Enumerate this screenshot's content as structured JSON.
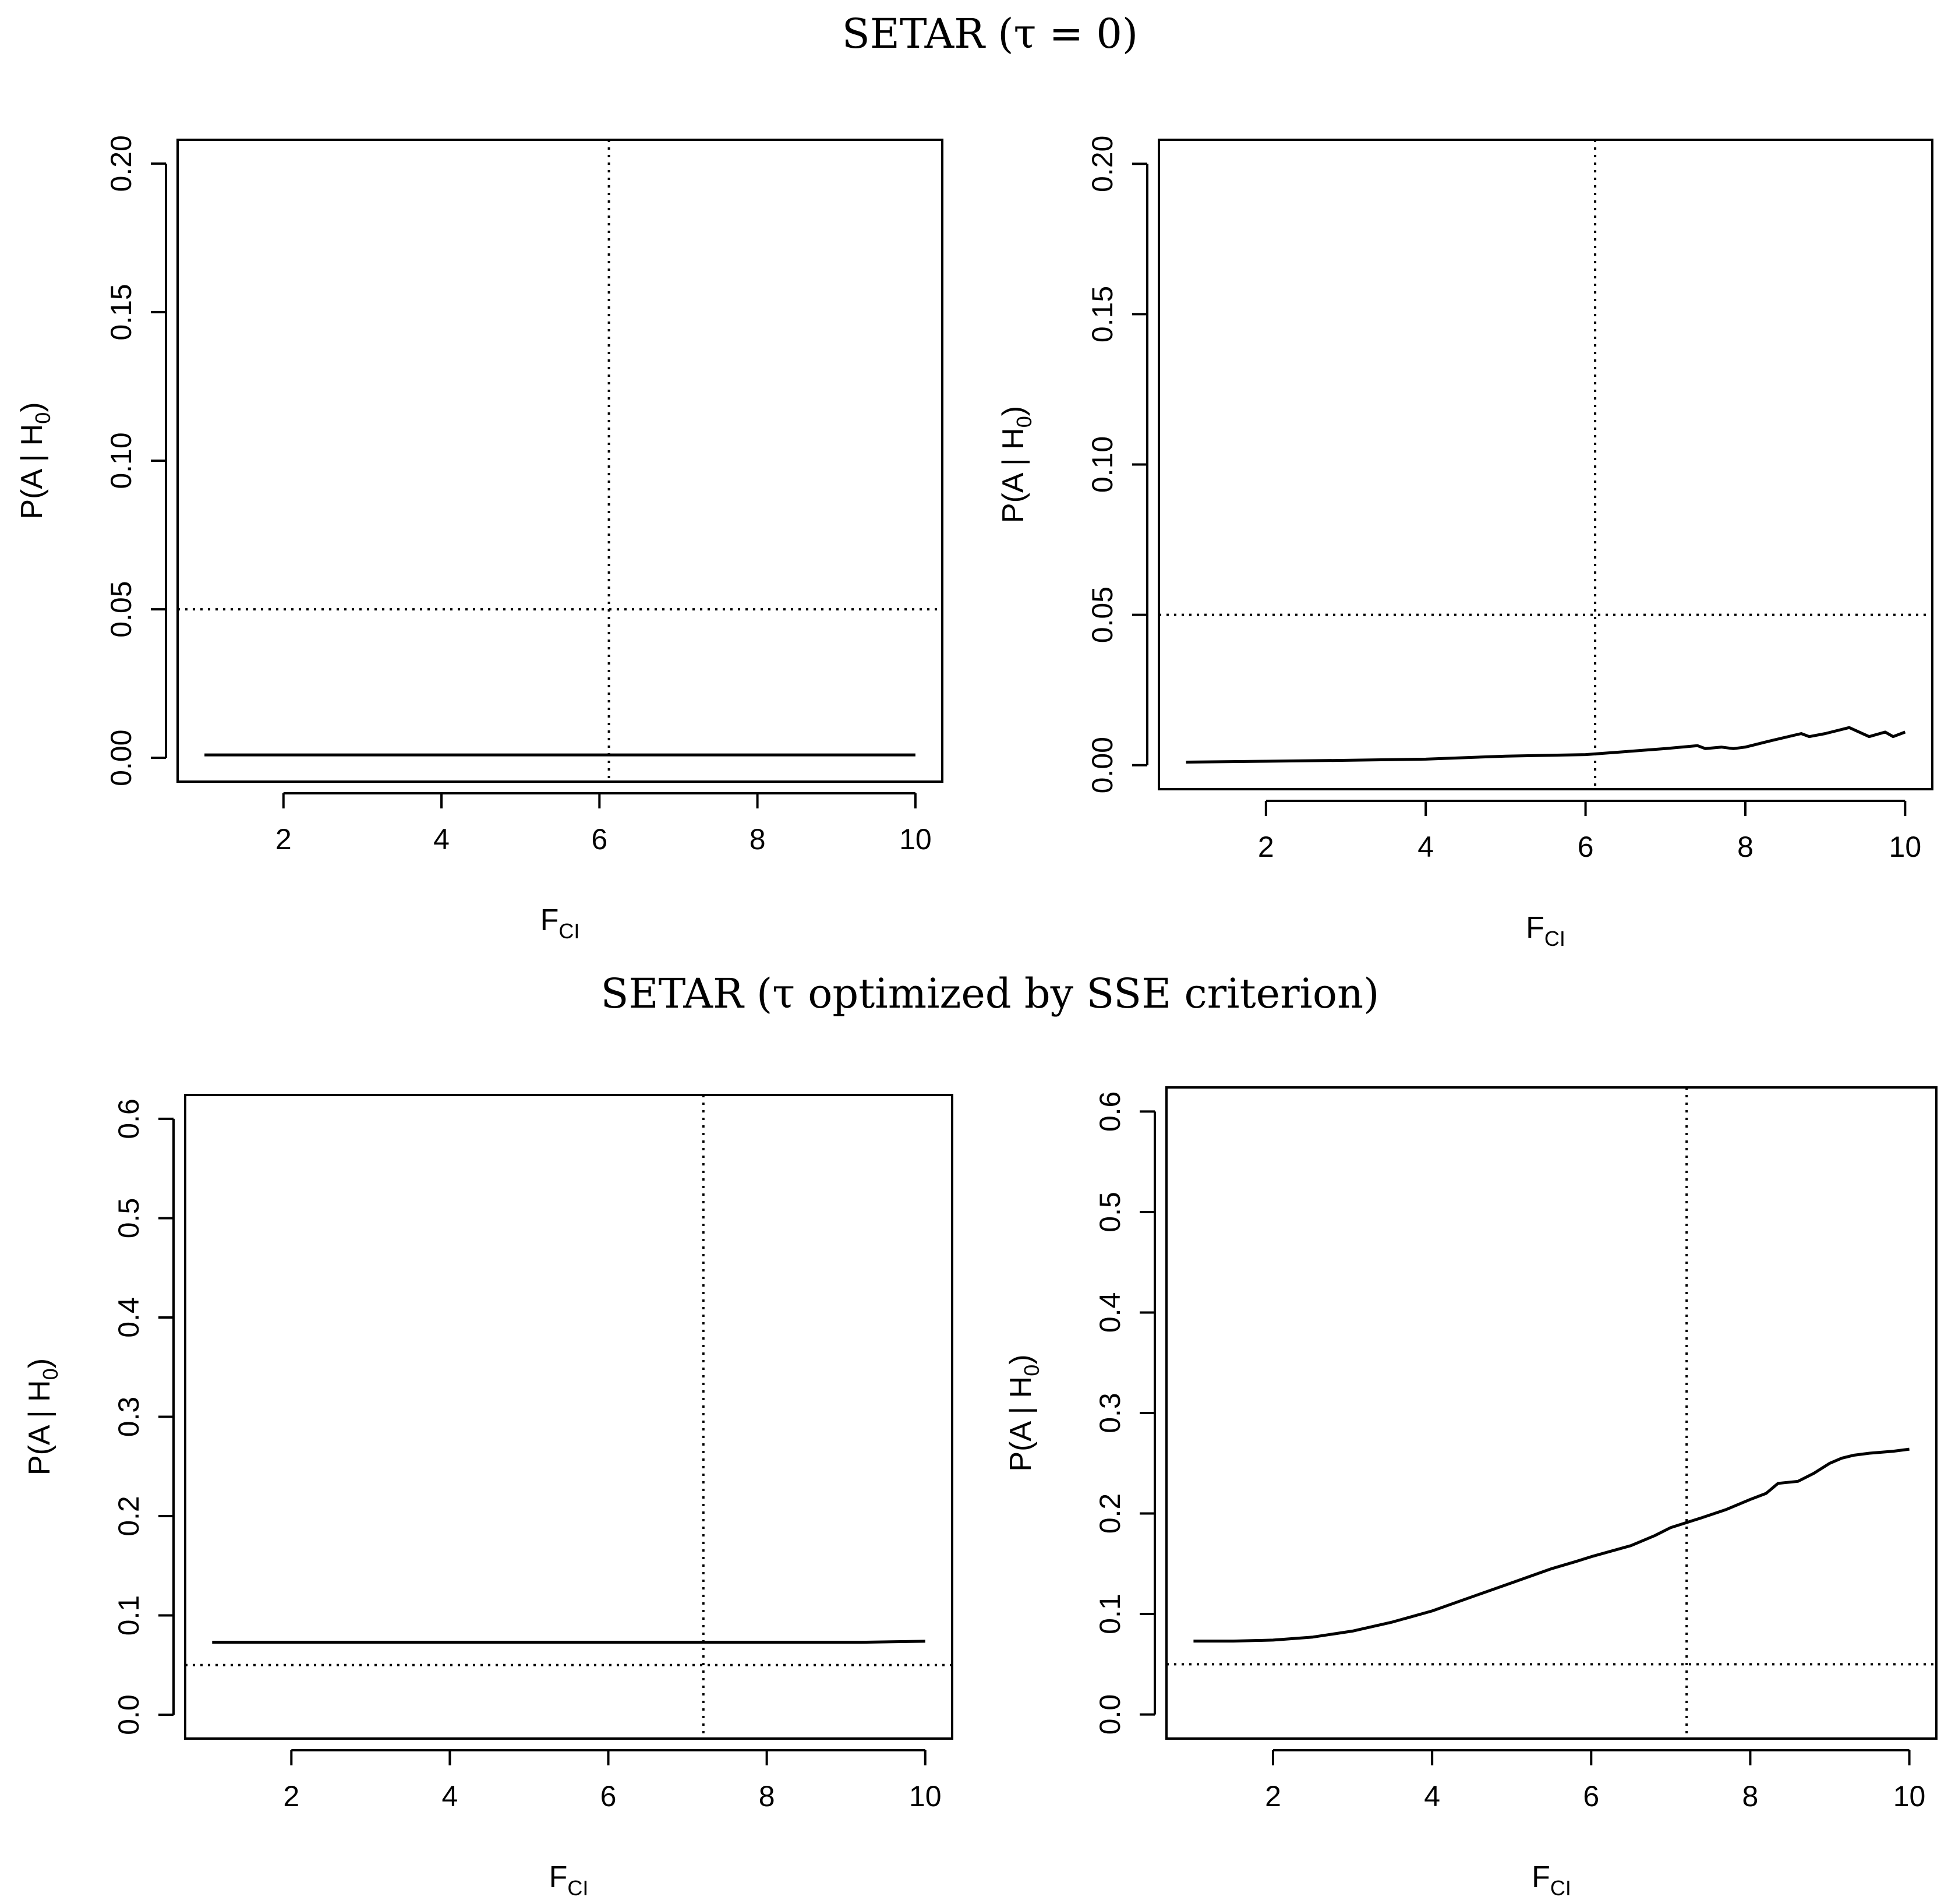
{
  "titles": {
    "top": "SETAR (τ = 0)",
    "bottom": "SETAR (τ optimized by SSE criterion)"
  },
  "chart_data": [
    {
      "id": "top-left",
      "type": "line",
      "section": "SETAR (τ = 0)",
      "xlabel": "F",
      "xlabel_sub": "CI",
      "ylabel": "P(A | H",
      "ylabel_sub": "0",
      "ylabel_tail": ")",
      "xlim": [
        0.66,
        10.34
      ],
      "ylim": [
        -0.008,
        0.208
      ],
      "xticks": [
        2,
        4,
        6,
        8,
        10
      ],
      "yticks": [
        0.0,
        0.05,
        0.1,
        0.15,
        0.2
      ],
      "ytick_labels": [
        "0.00",
        "0.05",
        "0.10",
        "0.15",
        "0.20"
      ],
      "hline": 0.05,
      "vline": 6.12,
      "series": [
        {
          "name": "P(A|H0)",
          "x": [
            1,
            10
          ],
          "y": [
            0.001,
            0.001
          ]
        }
      ]
    },
    {
      "id": "top-right",
      "type": "line",
      "section": "SETAR (τ = 0)",
      "xlabel": "F",
      "xlabel_sub": "CI",
      "ylabel": "P(A | H",
      "ylabel_sub": "0",
      "ylabel_tail": ")",
      "xlim": [
        0.66,
        10.34
      ],
      "ylim": [
        -0.008,
        0.208
      ],
      "xticks": [
        2,
        4,
        6,
        8,
        10
      ],
      "yticks": [
        0.0,
        0.05,
        0.1,
        0.15,
        0.2
      ],
      "ytick_labels": [
        "0.00",
        "0.05",
        "0.10",
        "0.15",
        "0.20"
      ],
      "hline": 0.05,
      "vline": 6.12,
      "series": [
        {
          "name": "P(A|H0)",
          "x": [
            1,
            2,
            3,
            4,
            5,
            6,
            6.5,
            7,
            7.2,
            7.4,
            7.5,
            7.7,
            7.85,
            8,
            8.3,
            8.7,
            8.8,
            9.0,
            9.3,
            9.55,
            9.75,
            9.85,
            10
          ],
          "y": [
            0.001,
            0.0013,
            0.0016,
            0.002,
            0.003,
            0.0035,
            0.0045,
            0.0055,
            0.006,
            0.0065,
            0.0055,
            0.006,
            0.0055,
            0.006,
            0.008,
            0.0105,
            0.0095,
            0.0105,
            0.0125,
            0.0095,
            0.011,
            0.0095,
            0.011
          ]
        }
      ]
    },
    {
      "id": "bottom-left",
      "type": "line",
      "section": "SETAR (τ optimized by SSE criterion)",
      "xlabel": "F",
      "xlabel_sub": "CI",
      "ylabel": "P(A | H",
      "ylabel_sub": "0",
      "ylabel_tail": ")",
      "xlim": [
        0.66,
        10.34
      ],
      "ylim": [
        -0.024,
        0.624
      ],
      "xticks": [
        2,
        4,
        6,
        8,
        10
      ],
      "yticks": [
        0.0,
        0.1,
        0.2,
        0.3,
        0.4,
        0.5,
        0.6
      ],
      "ytick_labels": [
        "0.0",
        "0.1",
        "0.2",
        "0.3",
        "0.4",
        "0.5",
        "0.6"
      ],
      "hline": 0.05,
      "vline": 7.2,
      "series": [
        {
          "name": "P(A|H0)",
          "x": [
            1,
            9.2,
            10
          ],
          "y": [
            0.073,
            0.073,
            0.074
          ]
        }
      ]
    },
    {
      "id": "bottom-right",
      "type": "line",
      "section": "SETAR (τ optimized by SSE criterion)",
      "xlabel": "F",
      "xlabel_sub": "CI",
      "ylabel": "P(A | H",
      "ylabel_sub": "0",
      "ylabel_tail": ")",
      "xlim": [
        0.66,
        10.34
      ],
      "ylim": [
        -0.024,
        0.624
      ],
      "xticks": [
        2,
        4,
        6,
        8,
        10
      ],
      "yticks": [
        0.0,
        0.1,
        0.2,
        0.3,
        0.4,
        0.5,
        0.6
      ],
      "ytick_labels": [
        "0.0",
        "0.1",
        "0.2",
        "0.3",
        "0.4",
        "0.5",
        "0.6"
      ],
      "hline": 0.05,
      "vline": 7.2,
      "series": [
        {
          "name": "P(A|H0)",
          "x": [
            1,
            1.5,
            2,
            2.5,
            3,
            3.5,
            4,
            4.5,
            5,
            5.5,
            5.8,
            6,
            6.5,
            6.8,
            7,
            7.4,
            7.7,
            8,
            8.2,
            8.35,
            8.6,
            8.8,
            9,
            9.15,
            9.3,
            9.5,
            9.8,
            10
          ],
          "y": [
            0.073,
            0.073,
            0.074,
            0.077,
            0.083,
            0.092,
            0.103,
            0.117,
            0.131,
            0.145,
            0.152,
            0.157,
            0.168,
            0.178,
            0.186,
            0.196,
            0.204,
            0.214,
            0.22,
            0.23,
            0.232,
            0.24,
            0.25,
            0.255,
            0.258,
            0.26,
            0.262,
            0.264
          ]
        }
      ]
    }
  ]
}
